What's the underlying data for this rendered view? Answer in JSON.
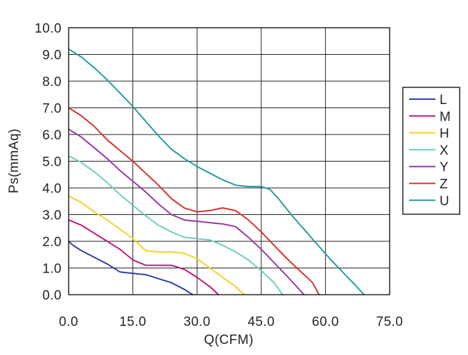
{
  "chart_data": {
    "type": "line",
    "title": "",
    "xlabel": "Q(CFM)",
    "ylabel": "Ps(mmAq)",
    "xlim": [
      0,
      75
    ],
    "ylim": [
      0,
      10
    ],
    "x_ticks": [
      0,
      15,
      30,
      45,
      60,
      75
    ],
    "x_tick_labels": [
      "0.0",
      "15.0",
      "30.0",
      "45.0",
      "60.0",
      "75.0"
    ],
    "y_ticks": [
      0,
      1,
      2,
      3,
      4,
      5,
      6,
      7,
      8,
      9,
      10
    ],
    "y_tick_labels": [
      "0.0",
      "1.0",
      "2.0",
      "3.0",
      "4.0",
      "5.0",
      "6.0",
      "7.0",
      "8.0",
      "9.0",
      "10.0"
    ],
    "grid": true,
    "legend_position": "right",
    "series": [
      {
        "name": "L",
        "color": "#2e3f9e",
        "x": [
          0,
          1,
          3,
          6,
          9,
          12,
          15,
          18,
          21,
          24,
          27,
          29
        ],
        "y": [
          2.0,
          1.85,
          1.65,
          1.4,
          1.15,
          0.85,
          0.8,
          0.75,
          0.6,
          0.45,
          0.2,
          0.0
        ]
      },
      {
        "name": "M",
        "color": "#c2187a",
        "x": [
          0,
          3,
          6,
          9,
          12,
          15,
          18,
          21,
          24,
          27,
          30,
          33,
          35
        ],
        "y": [
          2.8,
          2.6,
          2.3,
          2.0,
          1.7,
          1.3,
          1.1,
          1.1,
          1.1,
          0.95,
          0.65,
          0.3,
          0.0
        ]
      },
      {
        "name": "H",
        "color": "#f5d220",
        "x": [
          0,
          3,
          6,
          9,
          12,
          15,
          18,
          21,
          24,
          27,
          30,
          33,
          36,
          39,
          41
        ],
        "y": [
          3.7,
          3.45,
          3.1,
          2.8,
          2.45,
          2.1,
          1.65,
          1.6,
          1.6,
          1.55,
          1.35,
          1.0,
          0.65,
          0.3,
          0.0
        ]
      },
      {
        "name": "X",
        "color": "#6ecdc1",
        "x": [
          0,
          3,
          6,
          9,
          12,
          15,
          18,
          21,
          24,
          27,
          30,
          33,
          36,
          39,
          42,
          45,
          48,
          50
        ],
        "y": [
          5.2,
          4.95,
          4.6,
          4.2,
          3.75,
          3.35,
          2.95,
          2.6,
          2.35,
          2.15,
          2.1,
          2.05,
          1.85,
          1.6,
          1.3,
          0.9,
          0.45,
          0.0
        ]
      },
      {
        "name": "Y",
        "color": "#9b35a8",
        "x": [
          0,
          3,
          6,
          9,
          12,
          15,
          18,
          21,
          24,
          27,
          30,
          33,
          36,
          39,
          42,
          45,
          48,
          51,
          53,
          55
        ],
        "y": [
          6.2,
          5.9,
          5.5,
          5.1,
          4.65,
          4.25,
          3.85,
          3.4,
          3.0,
          2.8,
          2.75,
          2.7,
          2.65,
          2.55,
          2.15,
          1.7,
          1.2,
          0.7,
          0.35,
          0.0
        ]
      },
      {
        "name": "Z",
        "color": "#d9302c",
        "x": [
          0,
          3,
          6,
          9,
          12,
          15,
          18,
          21,
          24,
          27,
          30,
          33,
          36,
          39,
          42,
          45,
          48,
          51,
          54,
          57,
          58.5
        ],
        "y": [
          7.0,
          6.7,
          6.3,
          5.8,
          5.4,
          5.0,
          4.55,
          4.1,
          3.6,
          3.25,
          3.1,
          3.15,
          3.25,
          3.15,
          2.8,
          2.35,
          1.85,
          1.35,
          0.9,
          0.45,
          0.0
        ]
      },
      {
        "name": "U",
        "color": "#1f9e9a",
        "x": [
          0,
          3,
          6,
          9,
          12,
          15,
          18,
          21,
          24,
          27,
          30,
          33,
          36,
          39,
          42,
          45,
          47,
          49,
          52,
          55,
          58,
          61,
          64,
          67,
          69
        ],
        "y": [
          9.2,
          8.9,
          8.5,
          8.05,
          7.55,
          7.05,
          6.5,
          5.95,
          5.45,
          5.1,
          4.8,
          4.55,
          4.3,
          4.1,
          4.05,
          4.05,
          3.95,
          3.6,
          3.0,
          2.45,
          1.9,
          1.35,
          0.85,
          0.35,
          0.0
        ]
      }
    ]
  }
}
